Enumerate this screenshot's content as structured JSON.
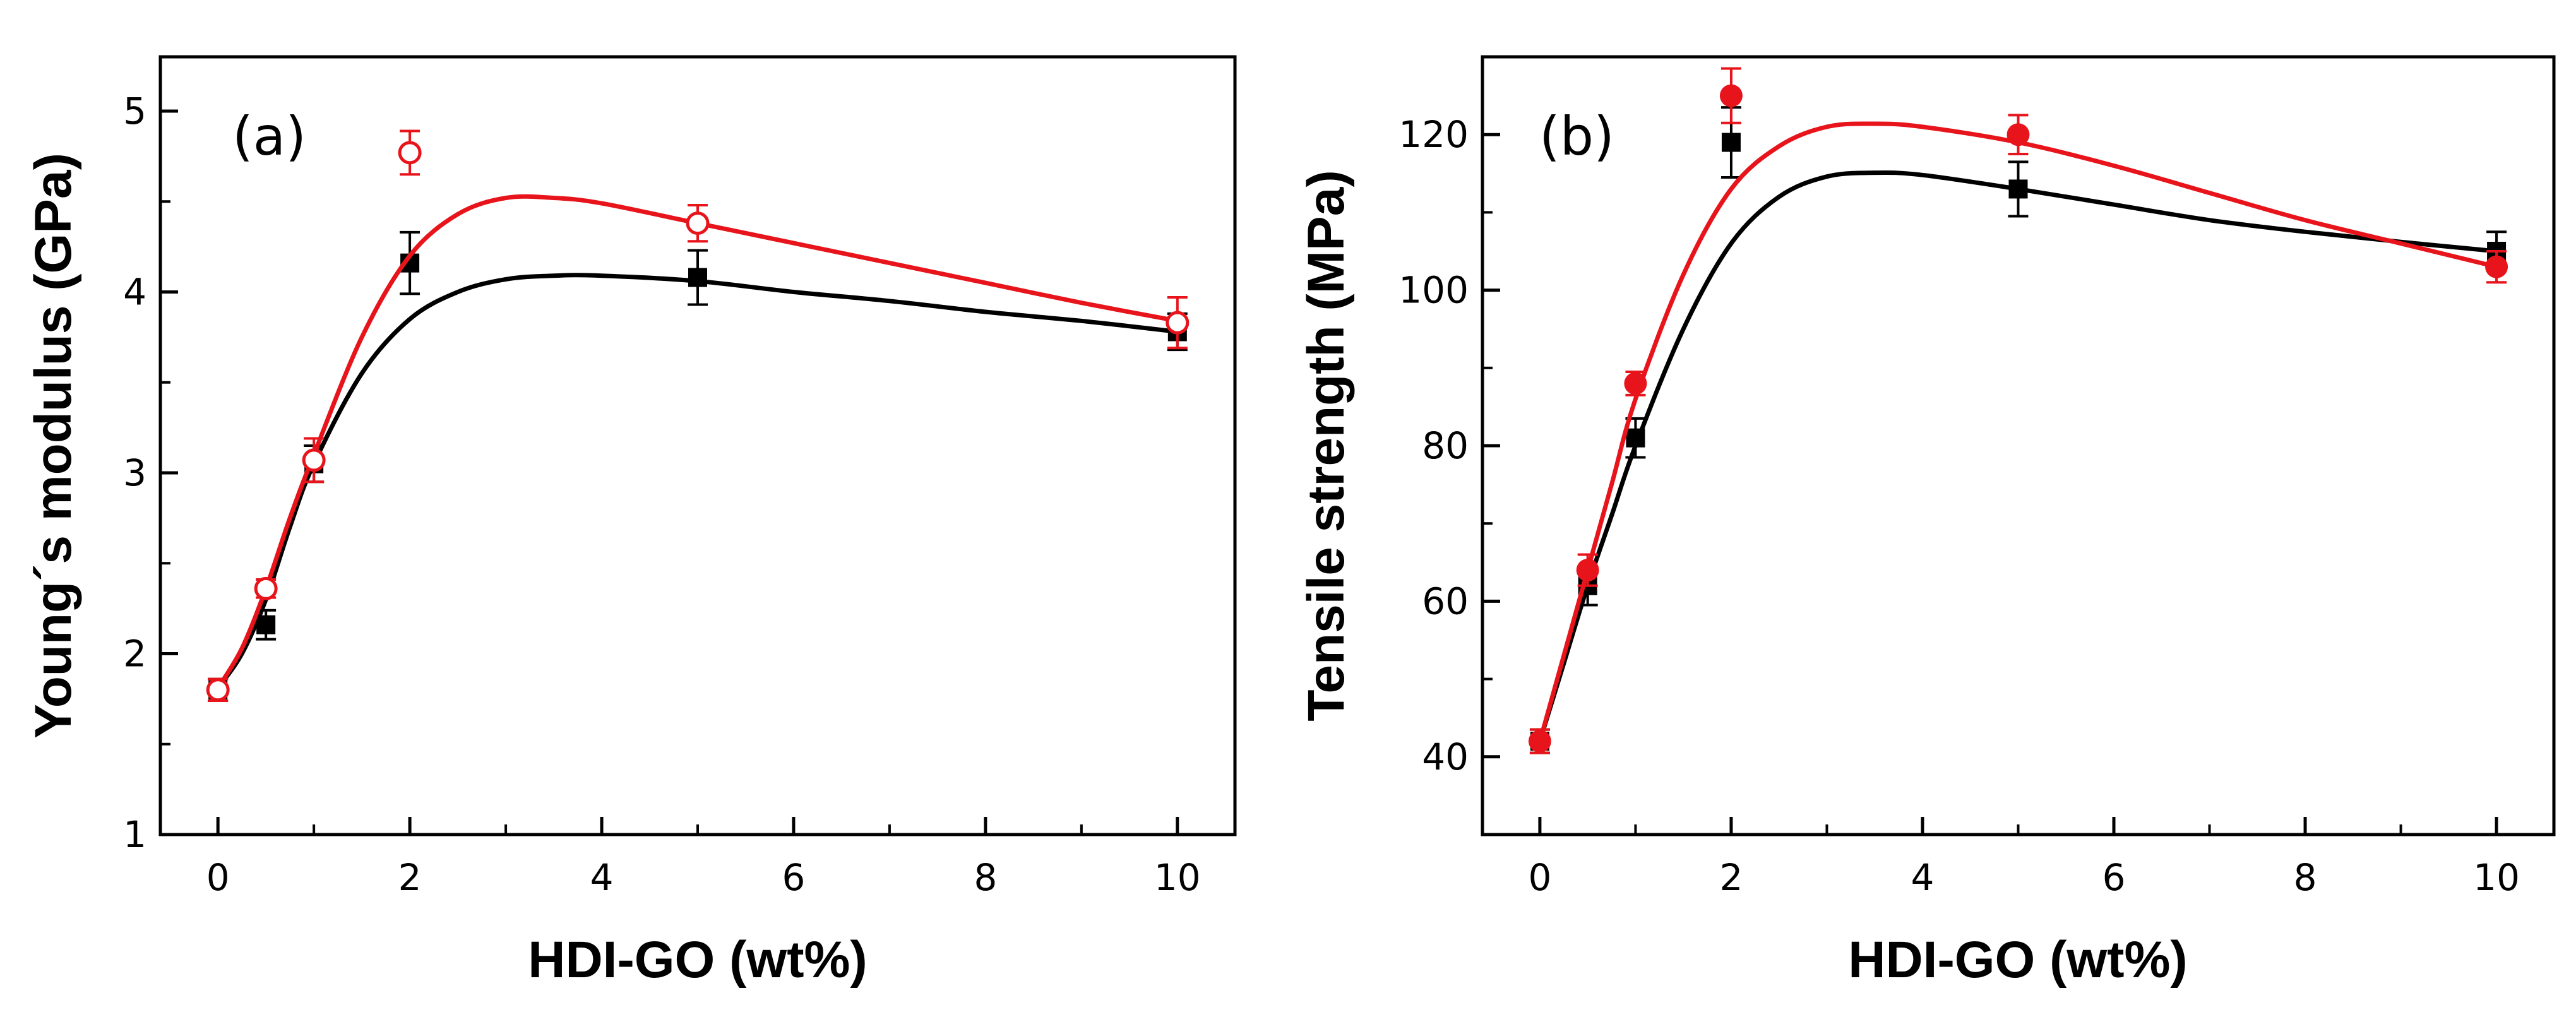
{
  "chart_data": [
    {
      "type": "scatter",
      "panel_label": "(a)",
      "xlabel": "HDI-GO (wt%)",
      "ylabel": "Young´s modulus (GPa)",
      "xlim": [
        -0.6,
        10.6
      ],
      "ylim": [
        1,
        5.3
      ],
      "xticks": [
        0,
        2,
        4,
        6,
        8,
        10
      ],
      "yticks": [
        1,
        2,
        3,
        4,
        5
      ],
      "grid": false,
      "series": [
        {
          "name": "black squares",
          "color": "#000000",
          "marker": "square-filled",
          "x": [
            0,
            0.5,
            1,
            2,
            5,
            10
          ],
          "y": [
            1.8,
            2.16,
            3.05,
            4.16,
            4.08,
            3.78
          ],
          "err": [
            0.06,
            0.08,
            0.1,
            0.17,
            0.15,
            0.1
          ],
          "fit_x": [
            0,
            0.25,
            0.5,
            0.75,
            1,
            1.5,
            2,
            2.5,
            3,
            3.5,
            4,
            5,
            6,
            7,
            8,
            9,
            10
          ],
          "fit_y": [
            1.81,
            2.0,
            2.3,
            2.7,
            3.05,
            3.55,
            3.85,
            4.0,
            4.07,
            4.09,
            4.09,
            4.06,
            4.0,
            3.95,
            3.89,
            3.84,
            3.78
          ]
        },
        {
          "name": "red open circles",
          "color": "#e8141b",
          "marker": "circle-open",
          "x": [
            0,
            0.5,
            1,
            2,
            5,
            10
          ],
          "y": [
            1.8,
            2.36,
            3.07,
            4.77,
            4.38,
            3.83
          ],
          "err": [
            0.06,
            0.05,
            0.12,
            0.12,
            0.1,
            0.14
          ],
          "fit_x": [
            0,
            0.25,
            0.5,
            0.75,
            1,
            1.5,
            2,
            2.5,
            3,
            3.5,
            4,
            5,
            6,
            7,
            8,
            9,
            10
          ],
          "fit_y": [
            1.81,
            2.03,
            2.36,
            2.75,
            3.1,
            3.75,
            4.2,
            4.43,
            4.52,
            4.52,
            4.49,
            4.38,
            4.27,
            4.16,
            4.05,
            3.94,
            3.84
          ]
        }
      ]
    },
    {
      "type": "scatter",
      "panel_label": "(b)",
      "xlabel": "HDI-GO (wt%)",
      "ylabel": "Tensile strength (MPa)",
      "xlim": [
        -0.6,
        10.6
      ],
      "ylim": [
        30,
        130
      ],
      "xticks": [
        0,
        2,
        4,
        6,
        8,
        10
      ],
      "yticks": [
        40,
        60,
        80,
        100,
        120
      ],
      "grid": false,
      "series": [
        {
          "name": "black squares",
          "color": "#000000",
          "marker": "square-filled",
          "x": [
            0,
            0.5,
            1,
            2,
            5,
            10
          ],
          "y": [
            42,
            62,
            81,
            119,
            113,
            105
          ],
          "err": [
            1.5,
            2.5,
            2.5,
            4.5,
            3.5,
            2.5
          ],
          "fit_x": [
            0,
            0.25,
            0.5,
            0.75,
            1,
            1.5,
            2,
            2.5,
            3,
            3.5,
            4,
            5,
            6,
            7,
            8,
            9,
            10
          ],
          "fit_y": [
            42,
            52,
            62,
            71,
            80,
            95,
            106,
            112,
            114.6,
            115.1,
            114.8,
            113,
            111,
            109,
            107.5,
            106.2,
            105
          ]
        },
        {
          "name": "red filled circles",
          "color": "#e8141b",
          "marker": "circle-filled",
          "x": [
            0,
            0.5,
            1,
            2,
            5,
            10
          ],
          "y": [
            42,
            64,
            88,
            125,
            120,
            103
          ],
          "err": [
            1.5,
            2,
            1.5,
            3.5,
            2.5,
            2
          ],
          "fit_x": [
            0,
            0.25,
            0.5,
            0.75,
            1,
            1.5,
            2,
            2.5,
            3,
            3.5,
            4,
            5,
            6,
            7,
            8,
            9,
            10
          ],
          "fit_y": [
            42,
            53,
            64,
            75,
            86,
            102,
            113,
            118.5,
            121,
            121.4,
            121,
            119,
            116,
            112.5,
            109,
            106,
            103
          ]
        }
      ]
    }
  ]
}
